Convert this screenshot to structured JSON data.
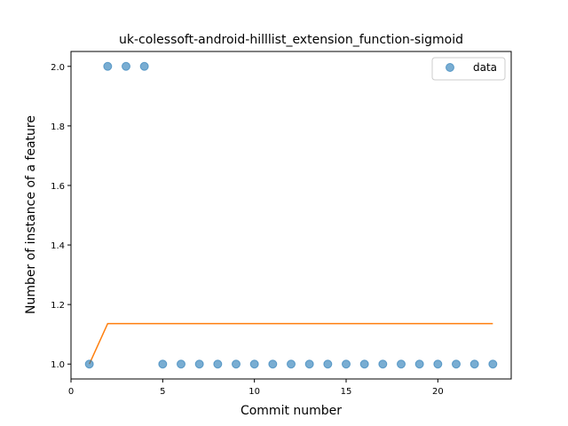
{
  "chart_data": {
    "type": "scatter",
    "title": "uk-colessoft-android-hilllist_extension_function-sigmoid",
    "xlabel": "Commit number",
    "ylabel": "Number of instance of a feature",
    "xlim": [
      0,
      24
    ],
    "ylim": [
      0.95,
      2.05
    ],
    "xticks": [
      0,
      5,
      10,
      15,
      20
    ],
    "yticks": [
      1.0,
      1.2,
      1.4,
      1.6,
      1.8,
      2.0
    ],
    "xtick_labels": [
      "0",
      "5",
      "10",
      "15",
      "20"
    ],
    "ytick_labels": [
      "1.0",
      "1.2",
      "1.4",
      "1.6",
      "1.8",
      "2.0"
    ],
    "legend": {
      "position": "top-right",
      "entries": [
        "data"
      ]
    },
    "series": [
      {
        "name": "data",
        "kind": "scatter",
        "color": "#1f77b4",
        "x": [
          1,
          2,
          3,
          4,
          5,
          6,
          7,
          8,
          9,
          10,
          11,
          12,
          13,
          14,
          15,
          16,
          17,
          18,
          19,
          20,
          21,
          22,
          23
        ],
        "y": [
          1,
          2,
          2,
          2,
          1,
          1,
          1,
          1,
          1,
          1,
          1,
          1,
          1,
          1,
          1,
          1,
          1,
          1,
          1,
          1,
          1,
          1,
          1
        ]
      },
      {
        "kind": "line",
        "color": "#ff7f0e",
        "x": [
          1,
          2,
          3,
          4,
          5,
          6,
          7,
          8,
          9,
          10,
          11,
          12,
          13,
          14,
          15,
          16,
          17,
          18,
          19,
          20,
          21,
          22,
          23
        ],
        "y": [
          1.0,
          1.136,
          1.136,
          1.136,
          1.136,
          1.136,
          1.136,
          1.136,
          1.136,
          1.136,
          1.136,
          1.136,
          1.136,
          1.136,
          1.136,
          1.136,
          1.136,
          1.136,
          1.136,
          1.136,
          1.136,
          1.136,
          1.136
        ]
      }
    ],
    "grid": false
  }
}
